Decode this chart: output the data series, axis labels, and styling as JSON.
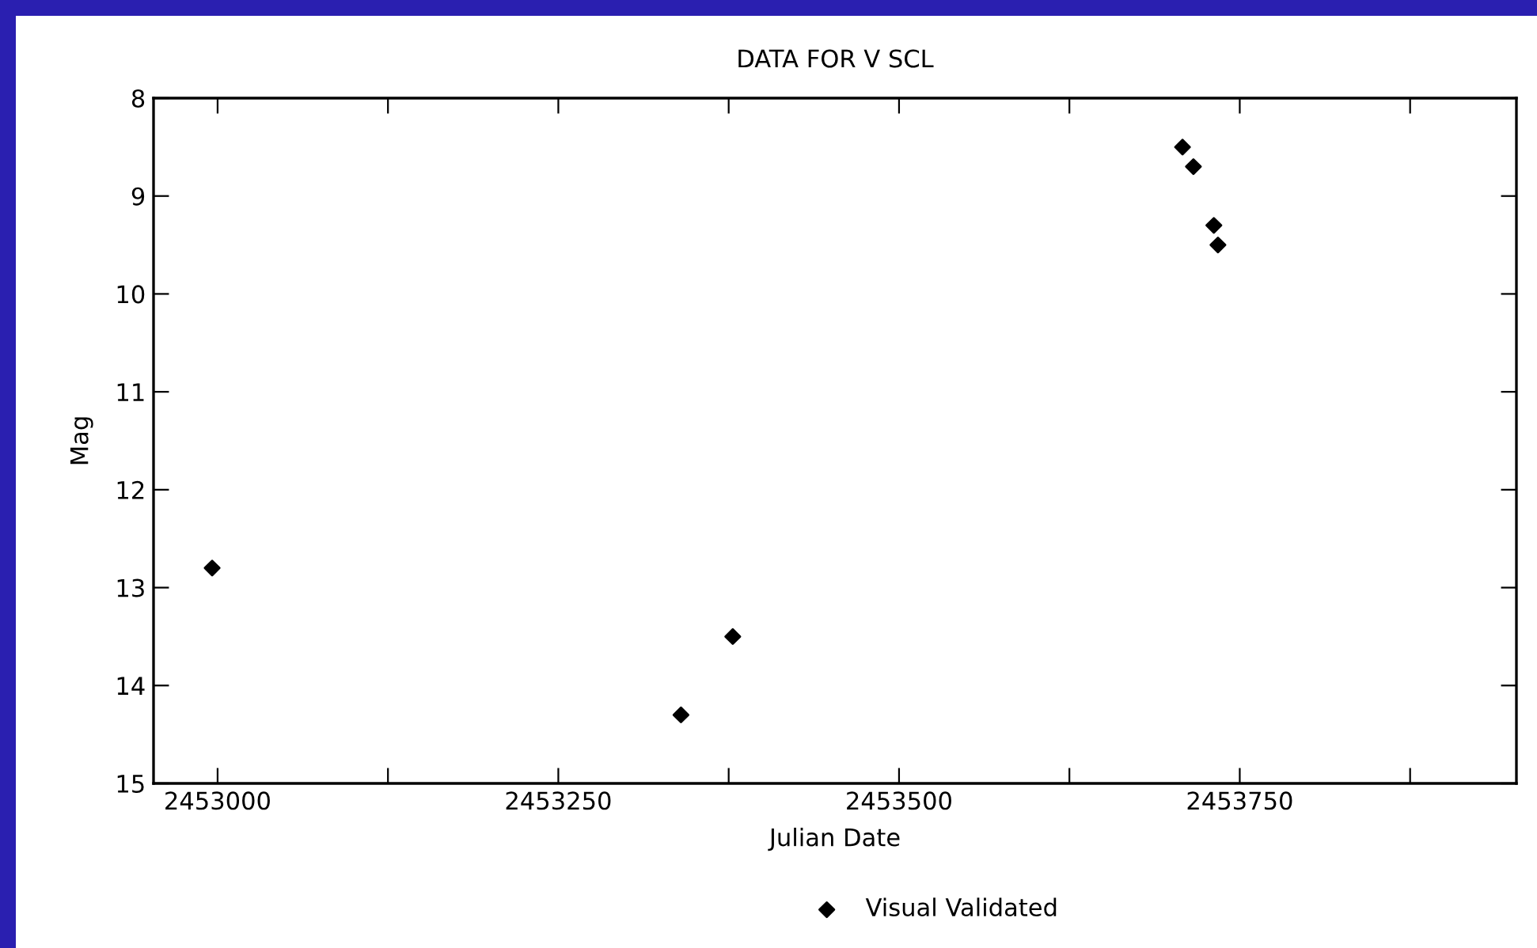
{
  "chart_data": {
    "type": "scatter",
    "title": "DATA FOR V SCL",
    "xlabel": "Julian Date",
    "ylabel": "Mag",
    "series": [
      {
        "name": "Visual Validated",
        "color": "#000000",
        "x": [
          2452996,
          2453340,
          2453378,
          2453708,
          2453716,
          2453731,
          2453734
        ],
        "values": [
          12.8,
          14.3,
          13.5,
          8.5,
          8.7,
          9.3,
          9.5
        ]
      }
    ],
    "marker": "diamond",
    "legend": "bottom",
    "grid": false,
    "xlim": [
      2452953,
      2453953
    ],
    "xticks": [
      2453000,
      {
        "value": 2453125,
        "label": null
      },
      2453250,
      {
        "value": 2453375,
        "label": null
      },
      2453500,
      {
        "value": 2453625,
        "label": null
      },
      2453750,
      {
        "value": 2453875,
        "label": null
      }
    ],
    "ylim": [
      15,
      8
    ],
    "yticks": [
      8,
      9,
      10,
      11,
      12,
      13,
      14,
      15
    ]
  }
}
